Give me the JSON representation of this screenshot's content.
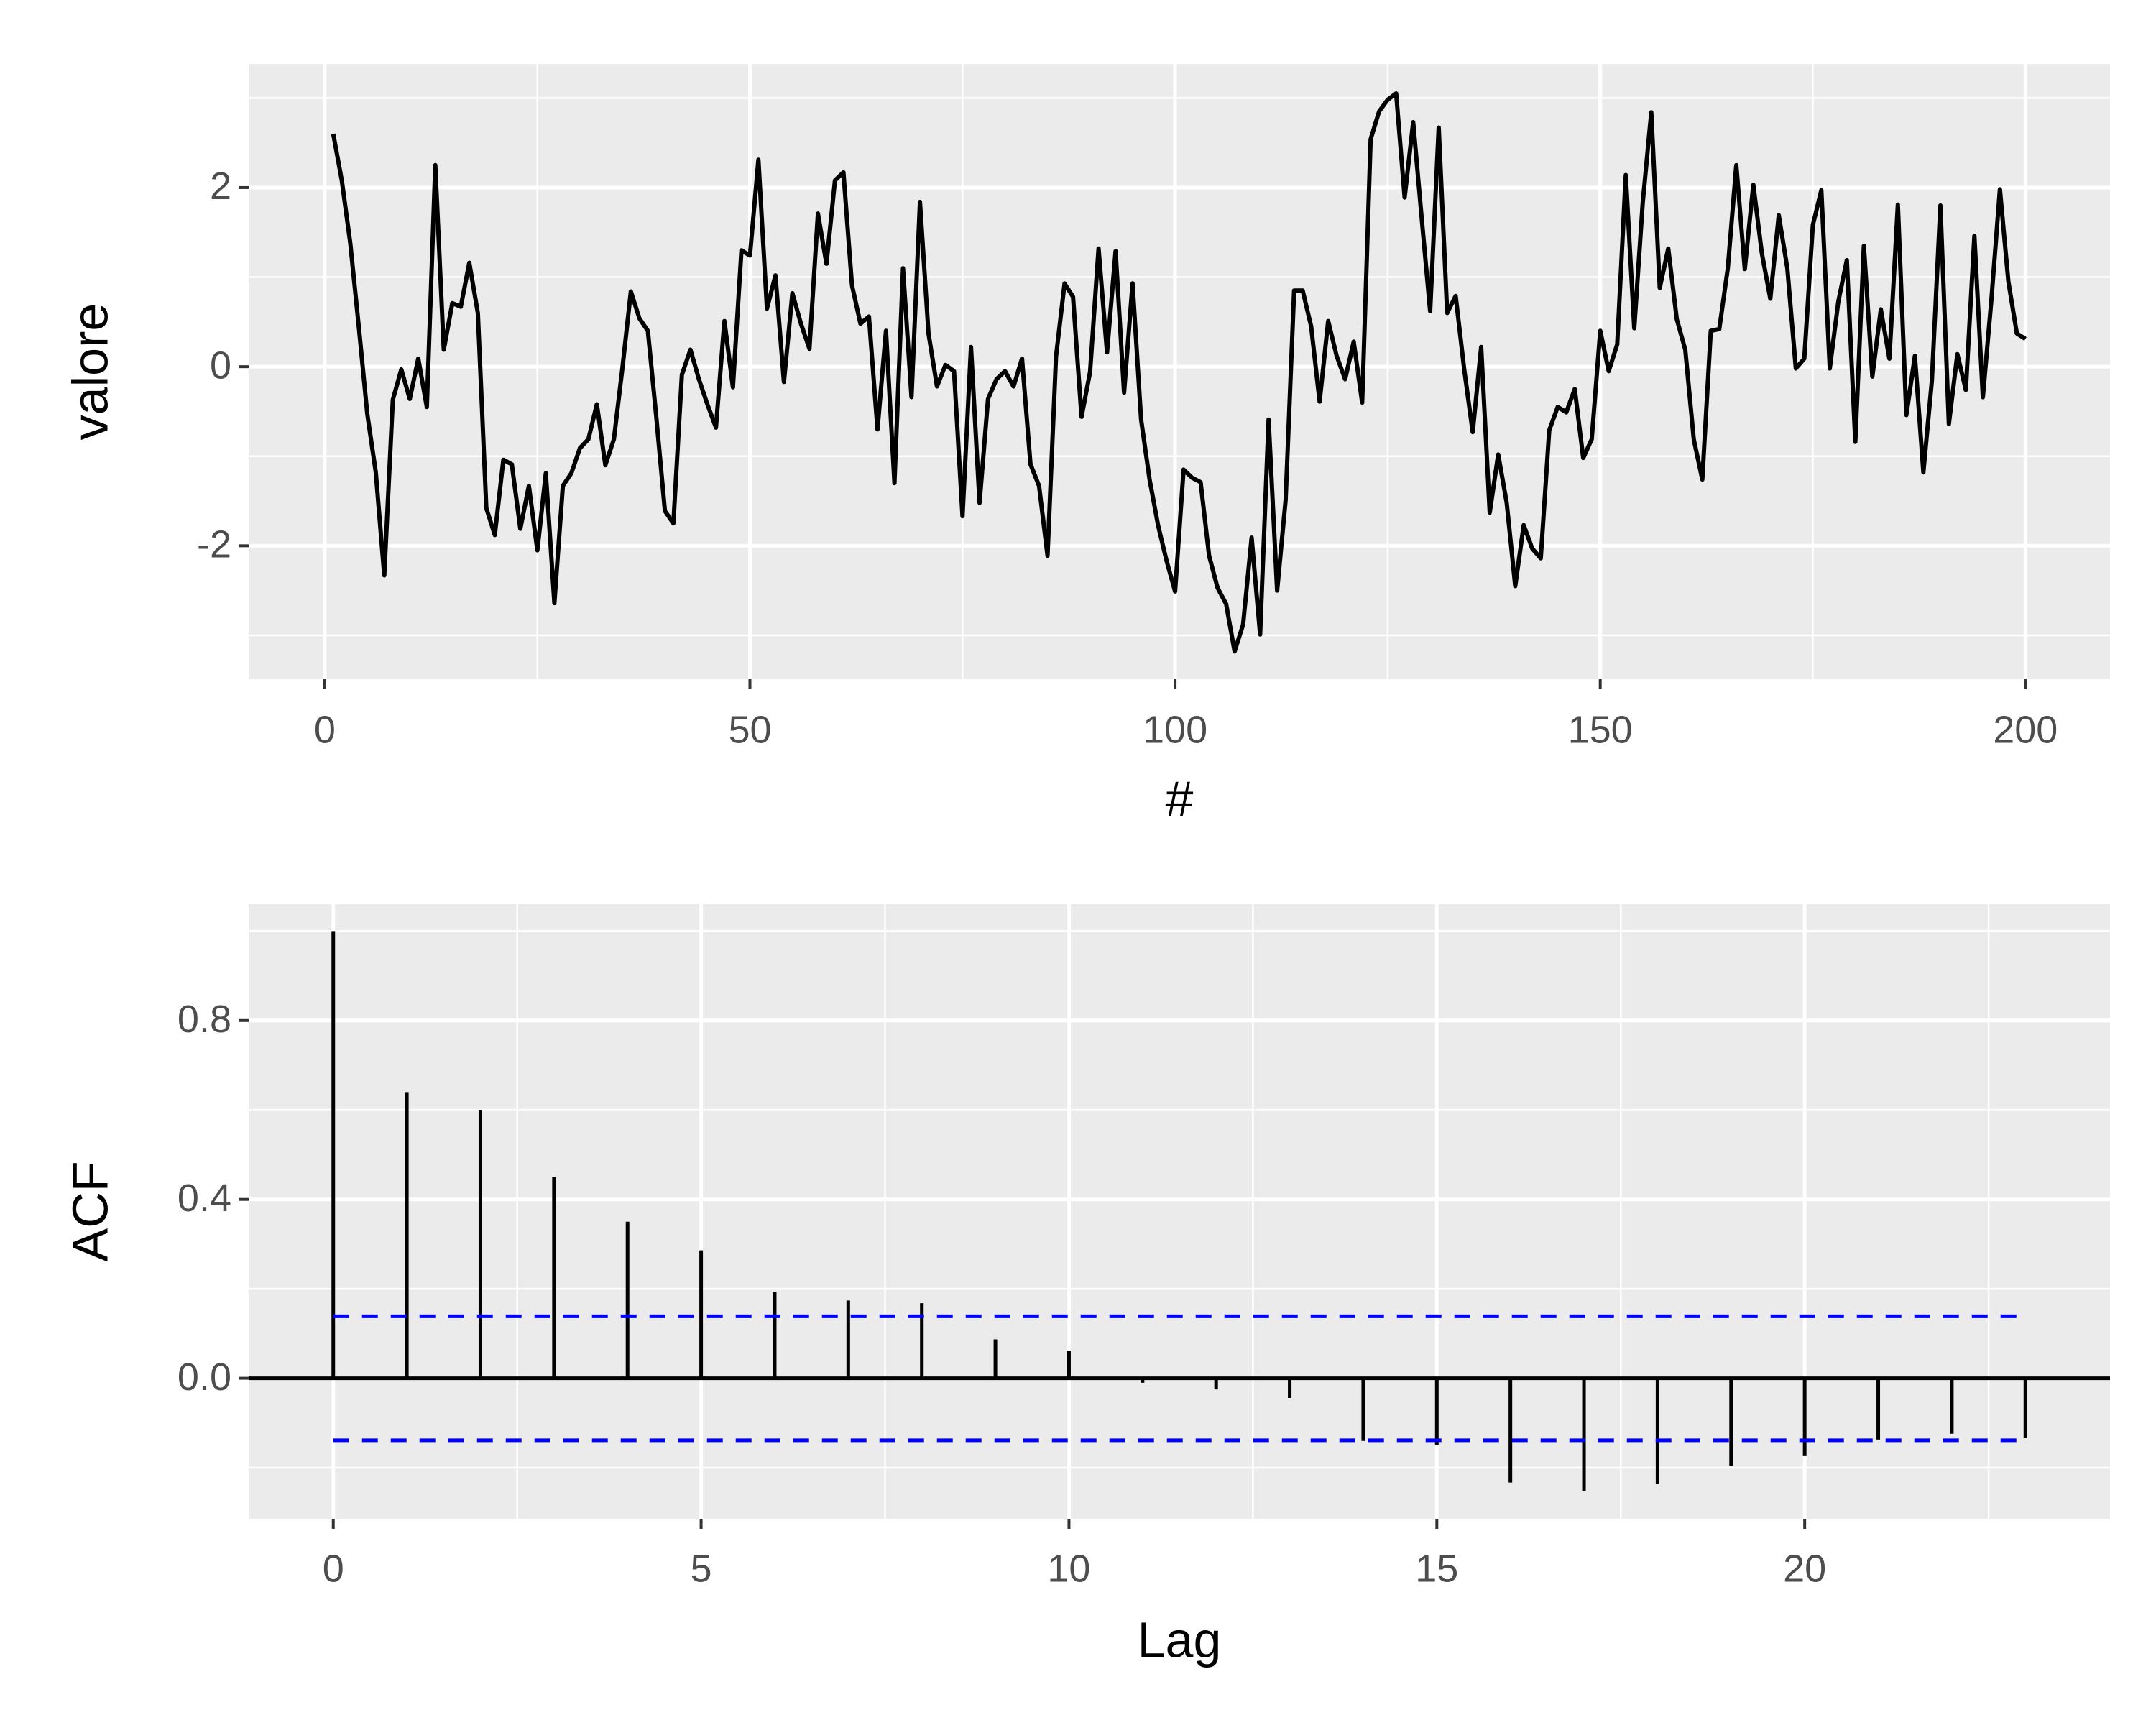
{
  "chart_data": [
    {
      "type": "line",
      "x_label": "#",
      "y_label": "valore",
      "x": [
        1,
        2,
        3,
        4,
        5,
        6,
        7,
        8,
        9,
        10,
        11,
        12,
        13,
        14,
        15,
        16,
        17,
        18,
        19,
        20,
        21,
        22,
        23,
        24,
        25,
        26,
        27,
        28,
        29,
        30,
        31,
        32,
        33,
        34,
        35,
        36,
        37,
        38,
        39,
        40,
        41,
        42,
        43,
        44,
        45,
        46,
        47,
        48,
        49,
        50,
        51,
        52,
        53,
        54,
        55,
        56,
        57,
        58,
        59,
        60,
        61,
        62,
        63,
        64,
        65,
        66,
        67,
        68,
        69,
        70,
        71,
        72,
        73,
        74,
        75,
        76,
        77,
        78,
        79,
        80,
        81,
        82,
        83,
        84,
        85,
        86,
        87,
        88,
        89,
        90,
        91,
        92,
        93,
        94,
        95,
        96,
        97,
        98,
        99,
        100,
        101,
        102,
        103,
        104,
        105,
        106,
        107,
        108,
        109,
        110,
        111,
        112,
        113,
        114,
        115,
        116,
        117,
        118,
        119,
        120,
        121,
        122,
        123,
        124,
        125,
        126,
        127,
        128,
        129,
        130,
        131,
        132,
        133,
        134,
        135,
        136,
        137,
        138,
        139,
        140,
        141,
        142,
        143,
        144,
        145,
        146,
        147,
        148,
        149,
        150,
        151,
        152,
        153,
        154,
        155,
        156,
        157,
        158,
        159,
        160,
        161,
        162,
        163,
        164,
        165,
        166,
        167,
        168,
        169,
        170,
        171,
        172,
        173,
        174,
        175,
        176,
        177,
        178,
        179,
        180,
        181,
        182,
        183,
        184,
        185,
        186,
        187,
        188,
        189,
        190,
        191,
        192,
        193,
        194,
        195,
        196,
        197,
        198,
        199,
        200
      ],
      "series": [
        {
          "color": "#000000",
          "values": [
            2.6,
            2.08,
            1.38,
            0.45,
            -0.53,
            -1.18,
            -2.33,
            -0.37,
            -0.03,
            -0.36,
            0.09,
            -0.45,
            2.25,
            0.19,
            0.71,
            0.67,
            1.16,
            0.6,
            -1.58,
            -1.88,
            -1.04,
            -1.09,
            -1.81,
            -1.33,
            -2.05,
            -1.19,
            -2.64,
            -1.33,
            -1.19,
            -0.91,
            -0.81,
            -0.42,
            -1.1,
            -0.81,
            -0.02,
            0.84,
            0.54,
            0.4,
            -0.57,
            -1.61,
            -1.75,
            -0.09,
            0.19,
            -0.14,
            -0.42,
            -0.68,
            0.51,
            -0.23,
            1.3,
            1.24,
            2.31,
            0.65,
            1.02,
            -0.17,
            0.82,
            0.48,
            0.2,
            1.71,
            1.15,
            2.08,
            2.17,
            0.91,
            0.48,
            0.56,
            -0.7,
            0.4,
            -1.3,
            1.1,
            -0.34,
            1.84,
            0.37,
            -0.22,
            0.02,
            -0.05,
            -1.67,
            0.22,
            -1.52,
            -0.36,
            -0.14,
            -0.05,
            -0.22,
            0.09,
            -1.09,
            -1.33,
            -2.11,
            0.11,
            0.93,
            0.78,
            -0.56,
            -0.06,
            1.32,
            0.16,
            1.29,
            -0.29,
            0.93,
            -0.59,
            -1.26,
            -1.77,
            -2.17,
            -2.51,
            -1.15,
            -1.24,
            -1.29,
            -2.11,
            -2.47,
            -2.65,
            -3.18,
            -2.88,
            -1.91,
            -2.99,
            -0.59,
            -2.5,
            -1.49,
            0.85,
            0.85,
            0.45,
            -0.39,
            0.51,
            0.12,
            -0.14,
            0.28,
            -0.4,
            2.54,
            2.85,
            2.98,
            3.05,
            1.89,
            2.73,
            1.66,
            0.62,
            2.67,
            0.6,
            0.79,
            -0.03,
            -0.73,
            0.22,
            -1.63,
            -0.98,
            -1.52,
            -2.45,
            -1.77,
            -2.03,
            -2.14,
            -0.71,
            -0.45,
            -0.51,
            -0.25,
            -1.02,
            -0.81,
            0.4,
            -0.05,
            0.25,
            2.14,
            0.43,
            1.83,
            2.84,
            0.88,
            1.32,
            0.53,
            0.19,
            -0.81,
            -1.26,
            0.4,
            0.42,
            1.1,
            2.25,
            1.09,
            2.03,
            1.27,
            0.76,
            1.69,
            1.1,
            -0.02,
            0.09,
            1.58,
            1.97,
            -0.02,
            0.73,
            1.19,
            -0.84,
            1.35,
            -0.11,
            0.64,
            0.09,
            1.81,
            -0.54,
            0.12,
            -1.18,
            -0.16,
            1.8,
            -0.64,
            0.14,
            -0.26,
            1.46,
            -0.34,
            0.74,
            1.98,
            0.95,
            0.37,
            0.31
          ]
        }
      ],
      "xlim": [
        -8.95,
        209.95
      ],
      "xticks": [
        0,
        50,
        100,
        150,
        200
      ],
      "ylim": [
        -3.49,
        3.38
      ],
      "yticks": [
        -2,
        0,
        2
      ],
      "grid": true
    },
    {
      "type": "stem",
      "x_label": "Lag",
      "y_label": "ACF",
      "x": [
        0,
        1,
        2,
        3,
        4,
        5,
        6,
        7,
        8,
        9,
        10,
        11,
        12,
        13,
        14,
        15,
        16,
        17,
        18,
        19,
        20,
        21,
        22,
        23
      ],
      "values": [
        1.0,
        0.64,
        0.6,
        0.45,
        0.35,
        0.286,
        0.193,
        0.174,
        0.168,
        0.087,
        0.062,
        -0.01,
        -0.025,
        -0.044,
        -0.14,
        -0.149,
        -0.233,
        -0.252,
        -0.236,
        -0.196,
        -0.174,
        -0.137,
        -0.124,
        -0.134
      ],
      "color": "#000000",
      "conf_limits": [
        0.1386,
        -0.1386
      ],
      "conf_color": "#0000ff",
      "xlim": [
        -1.15,
        24.15
      ],
      "xticks": [
        0,
        5,
        10,
        15,
        20
      ],
      "ylim": [
        -0.314,
        1.06
      ],
      "yticks": [
        {
          "value": 0,
          "label": "0.0"
        },
        0.4,
        0.8
      ],
      "grid": true
    }
  ]
}
